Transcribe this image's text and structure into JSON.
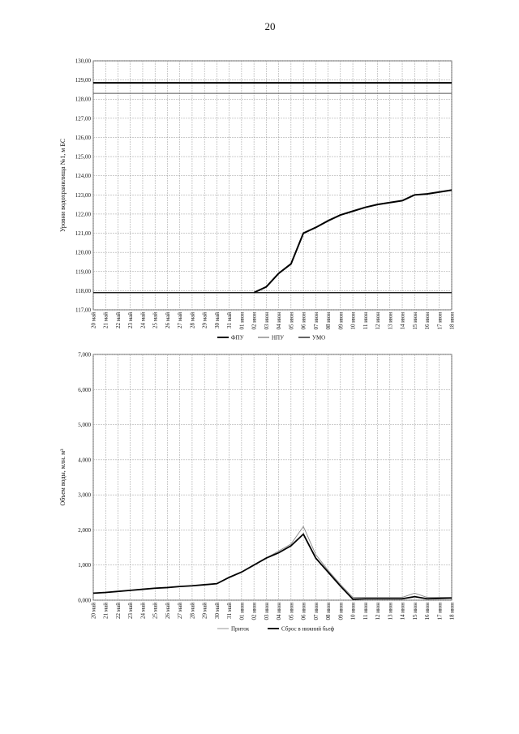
{
  "page_number": "20",
  "chart_data": [
    {
      "type": "line",
      "y_label": "Уровни водохранилища №1, м БС",
      "categories": [
        "20 май",
        "21 май",
        "22 май",
        "23 май",
        "24 май",
        "25 май",
        "26 май",
        "27 май",
        "28 май",
        "29 май",
        "30 май",
        "31 май",
        "01 июн",
        "02 июн",
        "03 июн",
        "04 июн",
        "05 июн",
        "06 июн",
        "07 июн",
        "08 июн",
        "09 июн",
        "10 июн",
        "11 июн",
        "12 июн",
        "13 июн",
        "14 июн",
        "15 июн",
        "16 июн",
        "17 июн",
        "18 июн"
      ],
      "series": [
        {
          "name": "ФПУ",
          "color": "#000000",
          "values": [
            128.85,
            128.85,
            128.85,
            128.85,
            128.85,
            128.85,
            128.85,
            128.85,
            128.85,
            128.85,
            128.85,
            128.85,
            128.85,
            128.85,
            128.85,
            128.85,
            128.85,
            128.85,
            128.85,
            128.85,
            128.85,
            128.85,
            128.85,
            128.85,
            128.85,
            128.85,
            128.85,
            128.85,
            128.85,
            128.85
          ]
        },
        {
          "name": "НПУ",
          "color": "#555555",
          "values": [
            128.3,
            128.3,
            128.3,
            128.3,
            128.3,
            128.3,
            128.3,
            128.3,
            128.3,
            128.3,
            128.3,
            128.3,
            128.3,
            128.3,
            128.3,
            128.3,
            128.3,
            128.3,
            128.3,
            128.3,
            128.3,
            128.3,
            128.3,
            128.3,
            128.3,
            128.3,
            128.3,
            128.3,
            128.3,
            128.3
          ]
        },
        {
          "name": "УМО",
          "color": "#222222",
          "values": [
            117.9,
            117.9,
            117.9,
            117.9,
            117.9,
            117.9,
            117.9,
            117.9,
            117.9,
            117.9,
            117.9,
            117.9,
            117.9,
            117.9,
            117.9,
            117.9,
            117.9,
            117.9,
            117.9,
            117.9,
            117.9,
            117.9,
            117.9,
            117.9,
            117.9,
            117.9,
            117.9,
            117.9,
            117.9,
            117.9
          ]
        },
        {
          "color": "#000000",
          "values": [
            null,
            null,
            null,
            null,
            null,
            null,
            null,
            null,
            null,
            null,
            null,
            null,
            null,
            117.9,
            118.2,
            118.9,
            119.4,
            121.0,
            121.3,
            121.65,
            121.95,
            122.15,
            122.35,
            122.5,
            122.6,
            122.7,
            123.0,
            123.05,
            123.15,
            123.25
          ]
        }
      ],
      "ylim": [
        117,
        130
      ],
      "yticks": [
        {
          "value": 117,
          "label": "117,00"
        },
        {
          "value": 118,
          "label": "118,00"
        },
        {
          "value": 119,
          "label": "119,00"
        },
        {
          "value": 120,
          "label": "120,00"
        },
        {
          "value": 121,
          "label": "121,00"
        },
        {
          "value": 122,
          "label": "122,00"
        },
        {
          "value": 123,
          "label": "123,00"
        },
        {
          "value": 124,
          "label": "124,00"
        },
        {
          "value": 125,
          "label": "125,00"
        },
        {
          "value": 126,
          "label": "126,00"
        },
        {
          "value": 127,
          "label": "127,00"
        },
        {
          "value": 128,
          "label": "128,00"
        },
        {
          "value": 129,
          "label": "129,00"
        },
        {
          "value": 130,
          "label": "130,00"
        }
      ],
      "grid": true,
      "legend": "bottom"
    },
    {
      "type": "line",
      "y_label": "Объем воды, млн. м³",
      "categories": [
        "20 май",
        "21 май",
        "22 май",
        "23 май",
        "24 май",
        "25 май",
        "26 май",
        "27 май",
        "28 май",
        "29 май",
        "30 май",
        "31 май",
        "01 июн",
        "02 июн",
        "03 июн",
        "04 июн",
        "05 июн",
        "06 июн",
        "07 июн",
        "08 июн",
        "09 июн",
        "10 июн",
        "11 июн",
        "12 июн",
        "13 июн",
        "14 июн",
        "15 июн",
        "16 июн",
        "17 июн",
        "18 июн"
      ],
      "series": [
        {
          "name": "Приток",
          "color": "#888888",
          "values": [
            0.2,
            0.22,
            0.25,
            0.28,
            0.31,
            0.34,
            0.36,
            0.39,
            0.41,
            0.44,
            0.47,
            0.65,
            0.8,
            1.0,
            1.2,
            1.4,
            1.6,
            2.1,
            1.3,
            0.85,
            0.45,
            0.08,
            0.08,
            0.08,
            0.08,
            0.08,
            0.2,
            0.08,
            0.08,
            0.08
          ]
        },
        {
          "name": "Сброс в нижний бьеф",
          "color": "#000000",
          "values": [
            0.2,
            0.22,
            0.25,
            0.28,
            0.31,
            0.34,
            0.36,
            0.39,
            0.41,
            0.44,
            0.47,
            0.65,
            0.8,
            1.0,
            1.2,
            1.35,
            1.55,
            1.88,
            1.2,
            0.8,
            0.4,
            0.03,
            0.04,
            0.04,
            0.04,
            0.04,
            0.1,
            0.04,
            0.05,
            0.06
          ]
        }
      ],
      "ylim": [
        0,
        7
      ],
      "yticks": [
        {
          "value": 0,
          "label": "0,000"
        },
        {
          "value": 1,
          "label": "1,000"
        },
        {
          "value": 2,
          "label": "2,000"
        },
        {
          "value": 3,
          "label": "3,000"
        },
        {
          "value": 4,
          "label": "4,000"
        },
        {
          "value": 5,
          "label": "5,000"
        },
        {
          "value": 6,
          "label": "6,000"
        },
        {
          "value": 7,
          "label": "7,000"
        }
      ],
      "grid": true,
      "legend": "bottom"
    }
  ]
}
